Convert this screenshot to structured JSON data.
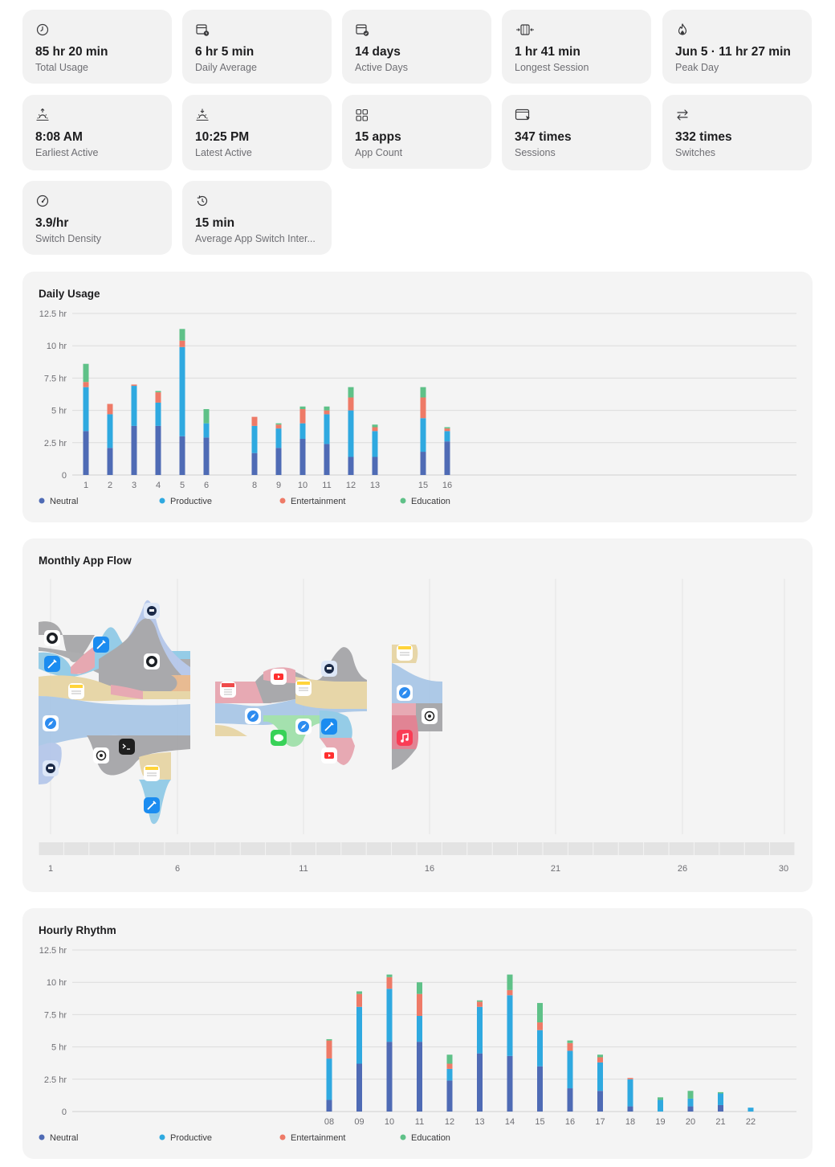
{
  "stats": [
    {
      "icon": "clock-icon",
      "value": "85 hr 20 min",
      "label": "Total Usage"
    },
    {
      "icon": "calendar-clock-icon",
      "value": "6 hr 5 min",
      "label": "Daily Average"
    },
    {
      "icon": "calendar-check-icon",
      "value": "14 days",
      "label": "Active Days"
    },
    {
      "icon": "stopwatch-range-icon",
      "value": "1 hr 41 min",
      "label": "Longest Session"
    },
    {
      "icon": "flame-icon",
      "value": "Jun 5 · 11 hr 27 min",
      "label": "Peak Day"
    },
    {
      "icon": "sunrise-icon",
      "value": "8:08 AM",
      "label": "Earliest Active"
    },
    {
      "icon": "sunset-icon",
      "value": "10:25 PM",
      "label": "Latest Active"
    },
    {
      "icon": "app-grid-icon",
      "value": "15 apps",
      "label": "App Count"
    },
    {
      "icon": "window-cursor-icon",
      "value": "347 times",
      "label": "Sessions"
    },
    {
      "icon": "switch-arrows-icon",
      "value": "332 times",
      "label": "Switches"
    },
    {
      "icon": "gauge-icon",
      "value": "3.9/hr",
      "label": "Switch Density"
    },
    {
      "icon": "history-icon",
      "value": "15 min",
      "label": "Average App Switch Inter..."
    }
  ],
  "colors": {
    "neutral": "#4f6bb5",
    "productive": "#2fa9e0",
    "entertainment": "#ee7a67",
    "education": "#5fc188",
    "grid": "#dcdcdc",
    "axis_text": "#6e6e73"
  },
  "legend": [
    "Neutral",
    "Productive",
    "Entertainment",
    "Education"
  ],
  "daily": {
    "title": "Daily Usage",
    "y_ticks": [
      "12.5 hr",
      "10 hr",
      "7.5 hr",
      "5 hr",
      "2.5 hr",
      "0"
    ],
    "chart_data": {
      "type": "bar",
      "stacked": true,
      "categories": [
        "1",
        "2",
        "3",
        "4",
        "5",
        "6",
        "8",
        "9",
        "10",
        "11",
        "12",
        "13",
        "15",
        "16"
      ],
      "ylim": [
        0,
        12.5
      ],
      "series": [
        {
          "name": "Neutral",
          "values": [
            3.4,
            2.1,
            3.8,
            3.8,
            3.0,
            2.9,
            1.7,
            2.1,
            2.8,
            2.4,
            1.4,
            1.4,
            1.8,
            2.6
          ]
        },
        {
          "name": "Productive",
          "values": [
            3.4,
            2.6,
            3.1,
            1.8,
            6.9,
            1.1,
            2.1,
            1.5,
            1.2,
            2.3,
            3.6,
            2.0,
            2.6,
            0.8
          ]
        },
        {
          "name": "Entertainment",
          "values": [
            0.4,
            0.8,
            0.1,
            0.8,
            0.5,
            0.0,
            0.7,
            0.3,
            1.1,
            0.3,
            1.0,
            0.3,
            1.6,
            0.2
          ]
        },
        {
          "name": "Education",
          "values": [
            1.4,
            0.0,
            0.0,
            0.1,
            0.9,
            1.1,
            0.0,
            0.1,
            0.2,
            0.3,
            0.8,
            0.2,
            0.8,
            0.1
          ]
        }
      ]
    }
  },
  "flow": {
    "title": "Monthly App Flow",
    "x_labels": [
      "1",
      "6",
      "11",
      "16",
      "21",
      "26",
      "30"
    ],
    "app_icons": [
      "github-icon",
      "xcode-icon",
      "notes-icon",
      "safari-icon",
      "bitwarden-icon",
      "chatgpt-icon",
      "terminal-icon",
      "calendar-icon",
      "youtube-icon",
      "messages-icon",
      "music-icon"
    ]
  },
  "hourly": {
    "title": "Hourly Rhythm",
    "y_ticks": [
      "12.5 hr",
      "10 hr",
      "7.5 hr",
      "5 hr",
      "2.5 hr",
      "0"
    ],
    "chart_data": {
      "type": "bar",
      "stacked": true,
      "categories": [
        "08",
        "09",
        "10",
        "11",
        "12",
        "13",
        "14",
        "15",
        "16",
        "17",
        "18",
        "19",
        "20",
        "21",
        "22"
      ],
      "ylim": [
        0,
        12.5
      ],
      "series": [
        {
          "name": "Neutral",
          "values": [
            0.9,
            3.7,
            5.4,
            5.4,
            2.4,
            4.5,
            4.3,
            3.5,
            1.8,
            1.6,
            0.4,
            0.0,
            0.4,
            0.5,
            0.0
          ]
        },
        {
          "name": "Productive",
          "values": [
            3.2,
            4.4,
            4.1,
            2.0,
            0.9,
            3.6,
            4.7,
            2.8,
            2.9,
            2.2,
            2.1,
            0.9,
            0.6,
            0.9,
            0.3
          ]
        },
        {
          "name": "Entertainment",
          "values": [
            1.4,
            1.0,
            0.9,
            1.7,
            0.4,
            0.4,
            0.4,
            0.6,
            0.6,
            0.4,
            0.1,
            0.0,
            0.0,
            0.0,
            0.0
          ]
        },
        {
          "name": "Education",
          "values": [
            0.1,
            0.2,
            0.2,
            0.9,
            0.7,
            0.1,
            1.2,
            1.5,
            0.2,
            0.2,
            0.0,
            0.2,
            0.6,
            0.1,
            0.0
          ]
        }
      ]
    }
  }
}
